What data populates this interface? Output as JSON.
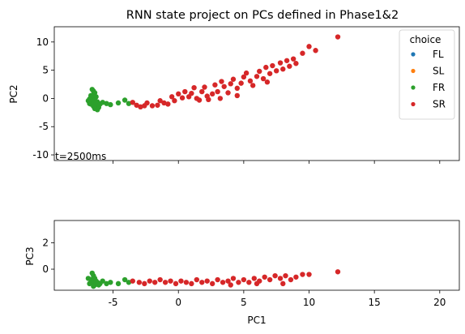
{
  "figure": {
    "title": "RNN state project on PCs defined in Phase1&2",
    "annotation": "t=2500ms"
  },
  "chart_data": [
    {
      "type": "scatter",
      "title": "RNN state project on PCs defined in Phase1&2",
      "xlabel": "",
      "ylabel": "PC2",
      "xlim": [
        -9.5,
        21.5
      ],
      "ylim": [
        -11,
        12.7
      ],
      "xticks": [
        -5,
        0,
        5,
        10,
        15,
        20
      ],
      "yticks": [
        -10,
        -5,
        0,
        5,
        10
      ],
      "grid": false,
      "legend": {
        "title": "choice",
        "placement": "top-right",
        "entries": [
          "FL",
          "SL",
          "FR",
          "SR"
        ]
      },
      "series": [
        {
          "name": "FL",
          "color": "#1f77b4",
          "points": []
        },
        {
          "name": "SL",
          "color": "#ff7f0e",
          "points": []
        },
        {
          "name": "FR",
          "color": "#2ca02c",
          "points": [
            [
              -6.6,
              1.6
            ],
            [
              -6.5,
              1.3
            ],
            [
              -6.4,
              1.0
            ],
            [
              -6.5,
              0.7
            ],
            [
              -6.7,
              0.5
            ],
            [
              -6.3,
              0.3
            ],
            [
              -6.6,
              0.1
            ],
            [
              -6.8,
              -0.1
            ],
            [
              -6.4,
              -0.3
            ],
            [
              -6.6,
              -0.5
            ],
            [
              -6.2,
              -0.6
            ],
            [
              -6.5,
              -0.8
            ],
            [
              -6.7,
              -1.0
            ],
            [
              -6.3,
              -1.2
            ],
            [
              -6.5,
              -1.4
            ],
            [
              -6.1,
              -1.6
            ],
            [
              -6.4,
              -1.8
            ],
            [
              -6.2,
              -2.0
            ],
            [
              -6.0,
              -1.0
            ],
            [
              -5.8,
              -0.7
            ],
            [
              -5.5,
              -0.9
            ],
            [
              -5.2,
              -1.1
            ],
            [
              -4.6,
              -0.8
            ],
            [
              -4.1,
              -0.3
            ],
            [
              -3.8,
              -0.9
            ],
            [
              -6.9,
              -0.4
            ],
            [
              -6.8,
              -0.9
            ]
          ]
        },
        {
          "name": "SR",
          "color": "#d62728",
          "points": [
            [
              -3.5,
              -0.7
            ],
            [
              -3.2,
              -1.2
            ],
            [
              -2.9,
              -1.5
            ],
            [
              -2.6,
              -1.3
            ],
            [
              -2.4,
              -0.8
            ],
            [
              -2.0,
              -1.3
            ],
            [
              -1.6,
              -1.2
            ],
            [
              -1.4,
              -0.4
            ],
            [
              -1.1,
              -0.8
            ],
            [
              -0.8,
              -1.0
            ],
            [
              -0.5,
              0.3
            ],
            [
              -0.3,
              -0.4
            ],
            [
              0.0,
              0.8
            ],
            [
              0.3,
              0.1
            ],
            [
              0.5,
              1.2
            ],
            [
              0.8,
              0.3
            ],
            [
              1.0,
              0.9
            ],
            [
              1.2,
              1.9
            ],
            [
              1.4,
              0.0
            ],
            [
              1.6,
              -0.3
            ],
            [
              1.8,
              1.2
            ],
            [
              2.0,
              2.0
            ],
            [
              2.3,
              -0.2
            ],
            [
              2.6,
              0.8
            ],
            [
              2.8,
              2.4
            ],
            [
              3.0,
              1.2
            ],
            [
              3.3,
              3.0
            ],
            [
              3.5,
              2.1
            ],
            [
              3.8,
              1.0
            ],
            [
              4.0,
              2.6
            ],
            [
              4.2,
              3.4
            ],
            [
              4.5,
              1.8
            ],
            [
              4.8,
              2.7
            ],
            [
              5.0,
              3.8
            ],
            [
              5.2,
              4.5
            ],
            [
              5.5,
              3.1
            ],
            [
              5.7,
              2.3
            ],
            [
              6.0,
              3.9
            ],
            [
              6.2,
              4.8
            ],
            [
              6.5,
              3.5
            ],
            [
              6.7,
              5.5
            ],
            [
              7.0,
              4.4
            ],
            [
              7.2,
              5.8
            ],
            [
              7.5,
              4.9
            ],
            [
              7.8,
              6.3
            ],
            [
              8.0,
              5.2
            ],
            [
              8.3,
              6.7
            ],
            [
              8.5,
              5.7
            ],
            [
              8.8,
              7.0
            ],
            [
              9.0,
              6.2
            ],
            [
              9.5,
              8.0
            ],
            [
              10.0,
              9.2
            ],
            [
              10.5,
              8.5
            ],
            [
              12.2,
              10.9
            ],
            [
              4.5,
              0.5
            ],
            [
              3.2,
              0.0
            ],
            [
              6.8,
              2.9
            ],
            [
              2.2,
              0.4
            ]
          ]
        }
      ]
    },
    {
      "type": "scatter",
      "title": "",
      "xlabel": "PC1",
      "ylabel": "PC3",
      "xlim": [
        -9.5,
        21.5
      ],
      "ylim": [
        -1.6,
        3.7
      ],
      "xticks": [
        -5,
        0,
        5,
        10,
        15,
        20
      ],
      "yticks": [
        0,
        2
      ],
      "grid": false,
      "series": [
        {
          "name": "FR",
          "color": "#2ca02c",
          "points": [
            [
              -6.6,
              -0.3
            ],
            [
              -6.5,
              -0.5
            ],
            [
              -6.4,
              -0.7
            ],
            [
              -6.7,
              -0.8
            ],
            [
              -6.3,
              -0.9
            ],
            [
              -6.6,
              -1.0
            ],
            [
              -6.8,
              -1.1
            ],
            [
              -6.4,
              -1.2
            ],
            [
              -6.2,
              -1.0
            ],
            [
              -6.5,
              -1.3
            ],
            [
              -6.0,
              -1.1
            ],
            [
              -5.8,
              -0.9
            ],
            [
              -5.5,
              -1.1
            ],
            [
              -5.2,
              -1.0
            ],
            [
              -4.6,
              -1.1
            ],
            [
              -4.1,
              -0.8
            ],
            [
              -3.8,
              -1.0
            ],
            [
              -6.9,
              -0.7
            ],
            [
              -6.1,
              -1.2
            ]
          ]
        },
        {
          "name": "SR",
          "color": "#d62728",
          "points": [
            [
              -3.5,
              -0.9
            ],
            [
              -3.0,
              -1.0
            ],
            [
              -2.6,
              -1.1
            ],
            [
              -2.2,
              -0.9
            ],
            [
              -1.8,
              -1.0
            ],
            [
              -1.4,
              -0.8
            ],
            [
              -1.0,
              -1.0
            ],
            [
              -0.6,
              -0.9
            ],
            [
              -0.2,
              -1.1
            ],
            [
              0.2,
              -0.9
            ],
            [
              0.6,
              -1.0
            ],
            [
              1.0,
              -1.1
            ],
            [
              1.4,
              -0.8
            ],
            [
              1.8,
              -1.0
            ],
            [
              2.2,
              -0.9
            ],
            [
              2.6,
              -1.1
            ],
            [
              3.0,
              -0.8
            ],
            [
              3.4,
              -1.0
            ],
            [
              3.8,
              -0.9
            ],
            [
              4.2,
              -0.7
            ],
            [
              4.6,
              -1.0
            ],
            [
              5.0,
              -0.8
            ],
            [
              5.4,
              -1.0
            ],
            [
              5.8,
              -0.7
            ],
            [
              6.2,
              -0.9
            ],
            [
              6.6,
              -0.6
            ],
            [
              7.0,
              -0.8
            ],
            [
              7.4,
              -0.5
            ],
            [
              7.8,
              -0.7
            ],
            [
              8.2,
              -0.5
            ],
            [
              8.6,
              -0.8
            ],
            [
              9.0,
              -0.6
            ],
            [
              9.5,
              -0.4
            ],
            [
              10.0,
              -0.4
            ],
            [
              12.2,
              -0.2
            ],
            [
              4.0,
              -1.2
            ],
            [
              6.0,
              -1.1
            ],
            [
              8.0,
              -1.1
            ]
          ]
        }
      ]
    }
  ]
}
